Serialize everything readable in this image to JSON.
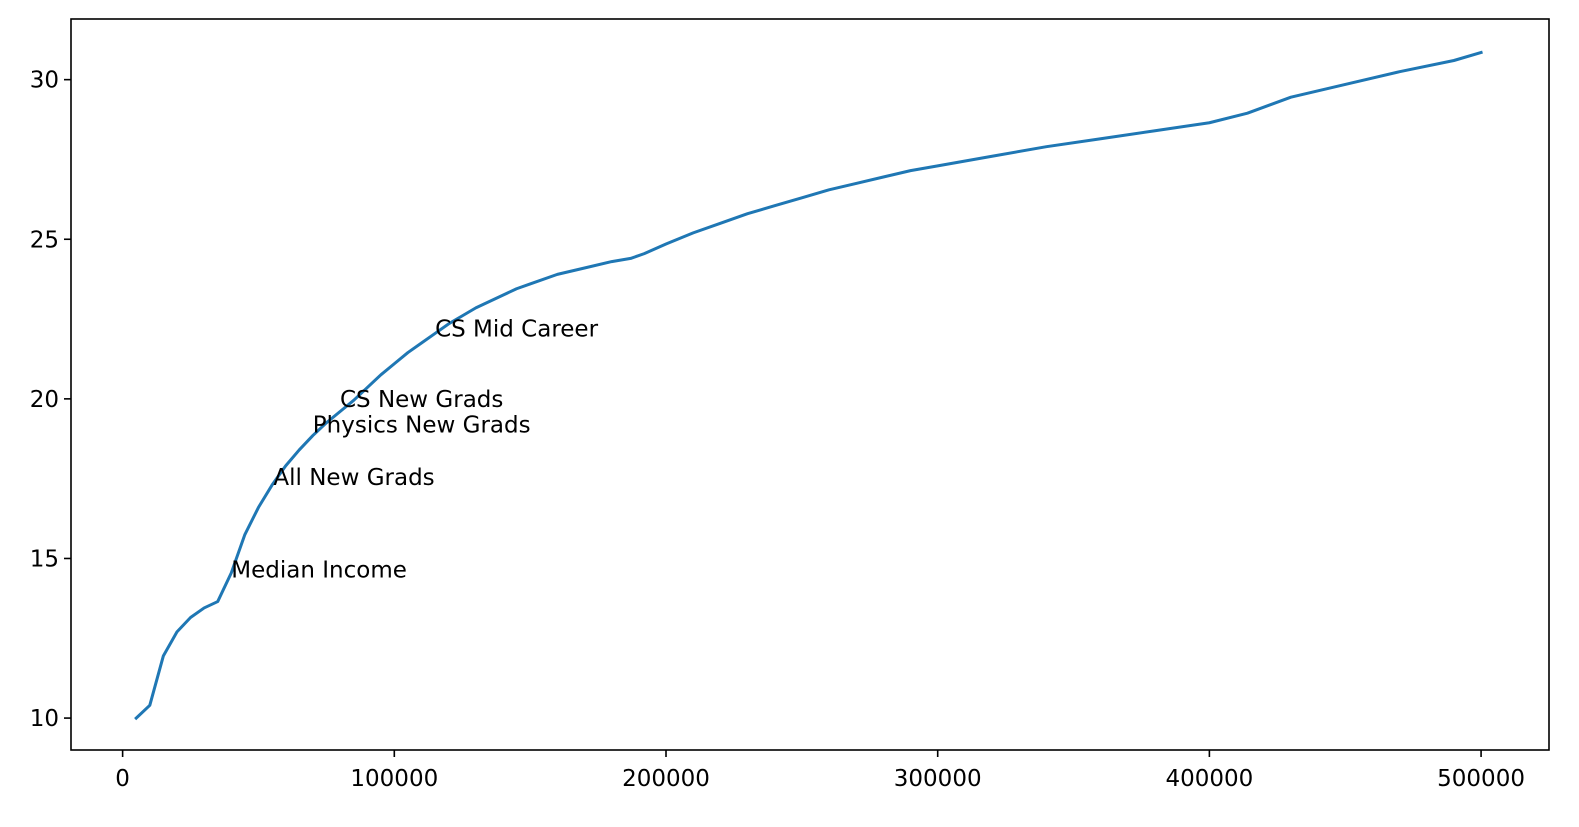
{
  "chart_data": {
    "type": "line",
    "title": "",
    "xlabel": "",
    "ylabel": "",
    "xlim": [
      -19000,
      525000
    ],
    "ylim": [
      9.0,
      31.9
    ],
    "grid": false,
    "line_color": "#1f77b4",
    "x_ticks": [
      0,
      100000,
      200000,
      300000,
      400000,
      500000
    ],
    "x_tick_labels": [
      "0",
      "100000",
      "200000",
      "300000",
      "400000",
      "500000"
    ],
    "y_ticks": [
      10,
      15,
      20,
      25,
      30
    ],
    "y_tick_labels": [
      "10",
      "15",
      "20",
      "25",
      "30"
    ],
    "series": [
      {
        "x": [
          5000,
          10000,
          15000,
          20000,
          25000,
          30000,
          35000,
          40000,
          45000,
          50000,
          55000,
          60000,
          65000,
          70000,
          75000,
          80000,
          85000,
          90000,
          95000,
          100000,
          105000,
          110000,
          115000,
          120000,
          125000,
          130000,
          135000,
          140000,
          145000,
          150000,
          160000,
          170000,
          180000,
          187000,
          192000,
          200000,
          210000,
          220000,
          230000,
          240000,
          250000,
          260000,
          270000,
          280000,
          290000,
          300000,
          320000,
          340000,
          360000,
          380000,
          400000,
          414000,
          430000,
          450000,
          470000,
          490000,
          500000
        ],
        "y": [
          10.0,
          10.4,
          11.95,
          12.7,
          13.15,
          13.45,
          13.65,
          14.55,
          15.75,
          16.6,
          17.3,
          17.9,
          18.4,
          18.85,
          19.25,
          19.6,
          19.95,
          20.35,
          20.75,
          21.1,
          21.45,
          21.75,
          22.05,
          22.35,
          22.6,
          22.85,
          23.05,
          23.25,
          23.45,
          23.6,
          23.9,
          24.1,
          24.3,
          24.4,
          24.55,
          24.85,
          25.2,
          25.5,
          25.8,
          26.05,
          26.3,
          26.55,
          26.75,
          26.95,
          27.15,
          27.3,
          27.6,
          27.9,
          28.15,
          28.4,
          28.65,
          28.95,
          29.45,
          29.85,
          30.25,
          30.6,
          30.85
        ]
      }
    ],
    "annotations": [
      {
        "text": "Median Income",
        "x": 40000,
        "y": 14.4
      },
      {
        "text": "All New Grads",
        "x": 55500,
        "y": 17.3
      },
      {
        "text": "Physics New Grads",
        "x": 70000,
        "y": 18.95
      },
      {
        "text": "CS New Grads",
        "x": 80000,
        "y": 19.75
      },
      {
        "text": "CS Mid Career",
        "x": 115000,
        "y": 21.95
      }
    ]
  }
}
